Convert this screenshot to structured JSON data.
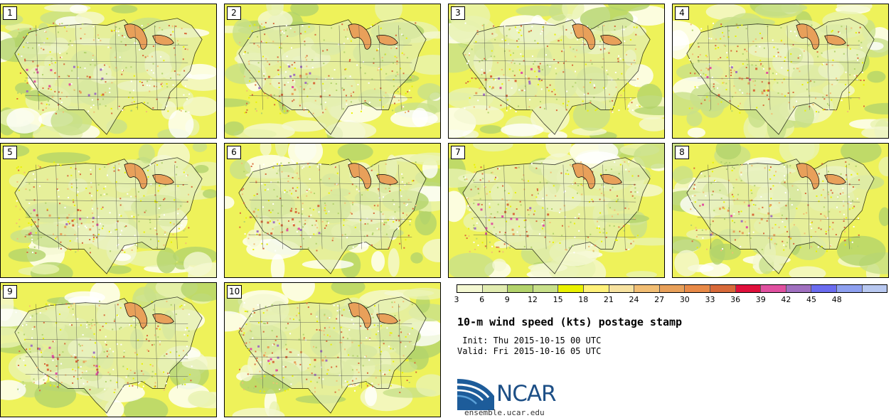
{
  "panels": [
    {
      "label": "1"
    },
    {
      "label": "2"
    },
    {
      "label": "3"
    },
    {
      "label": "4"
    },
    {
      "label": "5"
    },
    {
      "label": "6"
    },
    {
      "label": "7"
    },
    {
      "label": "8"
    },
    {
      "label": "9"
    },
    {
      "label": "10"
    }
  ],
  "colorbar": {
    "ticks": [
      "3",
      "6",
      "9",
      "12",
      "15",
      "18",
      "21",
      "24",
      "27",
      "30",
      "33",
      "36",
      "39",
      "42",
      "45",
      "48"
    ],
    "colors": [
      "#f4f8d2",
      "#e1ecb0",
      "#b3d36c",
      "#c8e08a",
      "#eaf200",
      "#fff17a",
      "#f7e2a0",
      "#f2be74",
      "#e8a05a",
      "#e88a48",
      "#d86a3a",
      "#e0103c",
      "#e050a0",
      "#a070c0",
      "#6b6cf0",
      "#8ea0f0",
      "#b8c8f0"
    ]
  },
  "title": "10-m wind speed (kts) postage stamp",
  "init_label": " Init: Thu 2015-10-15 00 UTC",
  "valid_label": "Valid: Fri 2015-10-16 05 UTC",
  "logo_text": "NCAR",
  "url": "ensemble.ucar.edu"
}
